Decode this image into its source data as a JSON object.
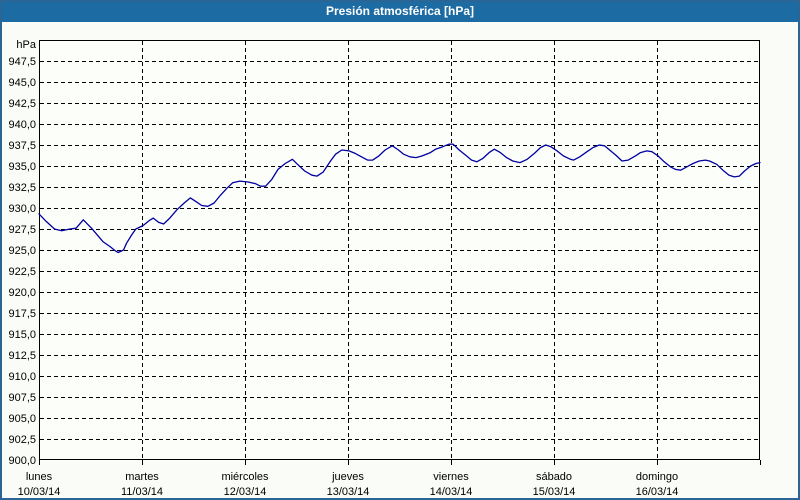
{
  "window": {
    "title": "Presión atmosférica [hPa]"
  },
  "colors": {
    "titlebar_bg": "#1d6ba3",
    "titlebar_text": "#ffffff",
    "frame_border": "#2a6695",
    "page_bg": "#fafdf7",
    "plot_bg": "#fcfefa",
    "grid": "#000000",
    "axis": "#000000",
    "series_line": "#0000a0",
    "label_text": "#000000"
  },
  "chart_data": {
    "type": "line",
    "title": "Presión atmosférica [hPa]",
    "grid": "dashed",
    "legend_position": "none",
    "y_axis": {
      "unit_label": "hPa",
      "min": 900.0,
      "max": 950.0,
      "tick_step": 2.5,
      "decimal_separator": "comma",
      "tick_labels": [
        "947,5",
        "945,0",
        "942,5",
        "940,0",
        "937,5",
        "935,0",
        "932,5",
        "930,0",
        "927,5",
        "925,0",
        "922,5",
        "920,0",
        "917,5",
        "915,0",
        "912,5",
        "910,0",
        "907,5",
        "905,0",
        "902,5",
        "900,0"
      ],
      "tick_values": [
        947.5,
        945.0,
        942.5,
        940.0,
        937.5,
        935.0,
        932.5,
        930.0,
        927.5,
        925.0,
        922.5,
        920.0,
        917.5,
        915.0,
        912.5,
        910.0,
        907.5,
        905.0,
        902.5,
        900.0
      ]
    },
    "x_axis": {
      "range_days": [
        0,
        7
      ],
      "days": [
        {
          "name": "lunes",
          "date": "10/03/14"
        },
        {
          "name": "martes",
          "date": "11/03/14"
        },
        {
          "name": "miércoles",
          "date": "12/03/14"
        },
        {
          "name": "jueves",
          "date": "13/03/14"
        },
        {
          "name": "viernes",
          "date": "14/03/14"
        },
        {
          "name": "sábado",
          "date": "15/03/14"
        },
        {
          "name": "domingo",
          "date": "16/03/14"
        }
      ]
    },
    "series": [
      {
        "name": "Presión atmosférica",
        "color": "#0000a0",
        "points": [
          [
            0.0,
            929.3
          ],
          [
            0.07,
            928.4
          ],
          [
            0.15,
            927.5
          ],
          [
            0.22,
            927.3
          ],
          [
            0.3,
            927.5
          ],
          [
            0.36,
            927.6
          ],
          [
            0.43,
            928.6
          ],
          [
            0.51,
            927.6
          ],
          [
            0.62,
            926.0
          ],
          [
            0.69,
            925.4
          ],
          [
            0.74,
            924.9
          ],
          [
            0.77,
            924.7
          ],
          [
            0.82,
            925.0
          ],
          [
            0.85,
            925.8
          ],
          [
            0.9,
            926.8
          ],
          [
            0.94,
            927.5
          ],
          [
            1.01,
            927.9
          ],
          [
            1.07,
            928.5
          ],
          [
            1.11,
            928.8
          ],
          [
            1.16,
            928.3
          ],
          [
            1.21,
            928.1
          ],
          [
            1.27,
            928.8
          ],
          [
            1.34,
            929.8
          ],
          [
            1.41,
            930.6
          ],
          [
            1.47,
            931.2
          ],
          [
            1.52,
            930.8
          ],
          [
            1.58,
            930.3
          ],
          [
            1.64,
            930.2
          ],
          [
            1.7,
            930.6
          ],
          [
            1.76,
            931.5
          ],
          [
            1.82,
            932.3
          ],
          [
            1.88,
            933.0
          ],
          [
            1.95,
            933.2
          ],
          [
            2.03,
            933.1
          ],
          [
            2.1,
            932.9
          ],
          [
            2.15,
            932.6
          ],
          [
            2.2,
            932.6
          ],
          [
            2.26,
            933.4
          ],
          [
            2.32,
            934.6
          ],
          [
            2.39,
            935.3
          ],
          [
            2.46,
            935.8
          ],
          [
            2.51,
            935.2
          ],
          [
            2.58,
            934.4
          ],
          [
            2.65,
            933.9
          ],
          [
            2.7,
            933.8
          ],
          [
            2.76,
            934.3
          ],
          [
            2.83,
            935.6
          ],
          [
            2.88,
            936.4
          ],
          [
            2.94,
            936.9
          ],
          [
            3.01,
            936.8
          ],
          [
            3.07,
            936.5
          ],
          [
            3.13,
            936.1
          ],
          [
            3.19,
            935.7
          ],
          [
            3.24,
            935.7
          ],
          [
            3.3,
            936.2
          ],
          [
            3.36,
            936.9
          ],
          [
            3.43,
            937.4
          ],
          [
            3.49,
            936.9
          ],
          [
            3.54,
            936.4
          ],
          [
            3.6,
            936.1
          ],
          [
            3.66,
            936.0
          ],
          [
            3.72,
            936.2
          ],
          [
            3.8,
            936.6
          ],
          [
            3.85,
            937.0
          ],
          [
            3.92,
            937.3
          ],
          [
            3.98,
            937.6
          ],
          [
            4.02,
            937.6
          ],
          [
            4.08,
            936.9
          ],
          [
            4.15,
            936.2
          ],
          [
            4.2,
            935.7
          ],
          [
            4.25,
            935.5
          ],
          [
            4.31,
            935.9
          ],
          [
            4.37,
            936.6
          ],
          [
            4.42,
            937.0
          ],
          [
            4.48,
            936.6
          ],
          [
            4.54,
            936.0
          ],
          [
            4.6,
            935.6
          ],
          [
            4.67,
            935.4
          ],
          [
            4.74,
            935.8
          ],
          [
            4.81,
            936.5
          ],
          [
            4.87,
            937.2
          ],
          [
            4.92,
            937.5
          ],
          [
            4.97,
            937.3
          ],
          [
            5.03,
            936.8
          ],
          [
            5.09,
            936.2
          ],
          [
            5.16,
            935.8
          ],
          [
            5.19,
            935.7
          ],
          [
            5.25,
            936.1
          ],
          [
            5.32,
            936.7
          ],
          [
            5.38,
            937.2
          ],
          [
            5.44,
            937.5
          ],
          [
            5.49,
            937.4
          ],
          [
            5.54,
            936.9
          ],
          [
            5.6,
            936.3
          ],
          [
            5.66,
            935.6
          ],
          [
            5.72,
            935.7
          ],
          [
            5.79,
            936.2
          ],
          [
            5.84,
            936.6
          ],
          [
            5.9,
            936.8
          ],
          [
            5.95,
            936.7
          ],
          [
            6.01,
            936.2
          ],
          [
            6.07,
            935.5
          ],
          [
            6.13,
            934.9
          ],
          [
            6.18,
            934.6
          ],
          [
            6.23,
            934.5
          ],
          [
            6.29,
            934.9
          ],
          [
            6.35,
            935.3
          ],
          [
            6.41,
            935.6
          ],
          [
            6.47,
            935.7
          ],
          [
            6.51,
            935.6
          ],
          [
            6.58,
            935.2
          ],
          [
            6.64,
            934.5
          ],
          [
            6.7,
            933.9
          ],
          [
            6.75,
            933.7
          ],
          [
            6.8,
            933.8
          ],
          [
            6.85,
            934.4
          ],
          [
            6.91,
            935.0
          ],
          [
            6.96,
            935.3
          ],
          [
            7.0,
            935.4
          ]
        ]
      }
    ]
  }
}
